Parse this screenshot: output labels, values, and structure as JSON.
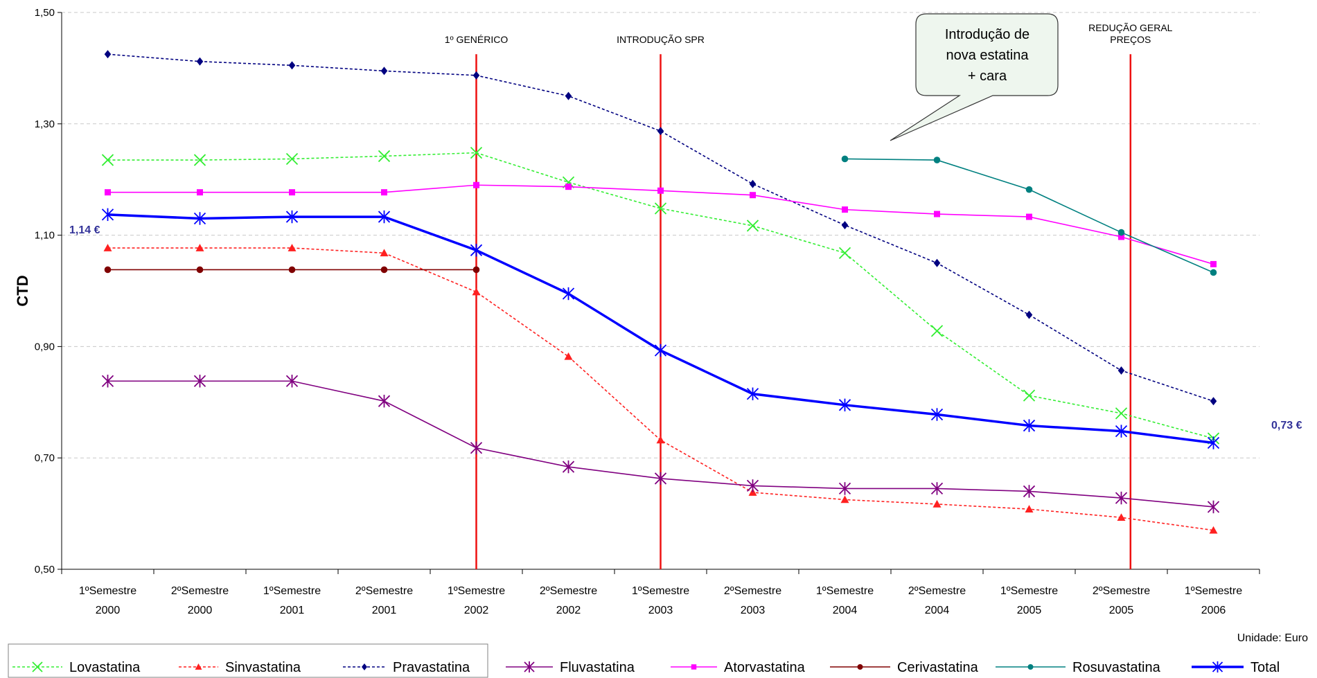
{
  "chart_data": {
    "type": "line",
    "ylabel": "CTD",
    "ylim": [
      0.5,
      1.5
    ],
    "yticks": [
      "1,50",
      "1,30",
      "1,10",
      "0,90",
      "0,70",
      "0,50"
    ],
    "categories": [
      [
        "1ºSemestre",
        "2000"
      ],
      [
        "2ºSemestre",
        "2000"
      ],
      [
        "1ºSemestre",
        "2001"
      ],
      [
        "2ºSemestre",
        "2001"
      ],
      [
        "1ºSemestre",
        "2002"
      ],
      [
        "2ºSemestre",
        "2002"
      ],
      [
        "1ºSemestre",
        "2003"
      ],
      [
        "2ºSemestre",
        "2003"
      ],
      [
        "1ºSemestre",
        "2004"
      ],
      [
        "2ºSemestre",
        "2004"
      ],
      [
        "1ºSemestre",
        "2005"
      ],
      [
        "2ºSemestre",
        "2005"
      ],
      [
        "1ºSemestre",
        "2006"
      ]
    ],
    "unit_note": "Unidade: Euro",
    "series": [
      {
        "name": "Lovastatina",
        "color": "#33ee33",
        "dash": true,
        "marker": "x",
        "values": [
          1.235,
          1.235,
          1.237,
          1.242,
          1.248,
          1.195,
          1.148,
          1.117,
          1.068,
          0.928,
          0.812,
          0.78,
          0.735
        ]
      },
      {
        "name": "Sinvastatina",
        "color": "#ff2020",
        "dash": true,
        "marker": "triangle",
        "values": [
          1.077,
          1.077,
          1.077,
          1.068,
          0.998,
          0.882,
          0.732,
          0.638,
          0.625,
          0.617,
          0.608,
          0.593,
          0.57
        ]
      },
      {
        "name": "Pravastatina",
        "color": "#000080",
        "dash": true,
        "marker": "diamond",
        "values": [
          1.425,
          1.412,
          1.405,
          1.395,
          1.387,
          1.35,
          1.287,
          1.192,
          1.118,
          1.05,
          0.957,
          0.857,
          0.802
        ]
      },
      {
        "name": "Fluvastatina",
        "color": "#800080",
        "dash": false,
        "marker": "star",
        "values": [
          0.838,
          0.838,
          0.838,
          0.802,
          0.718,
          0.684,
          0.663,
          0.65,
          0.645,
          0.645,
          0.64,
          0.628,
          0.612
        ]
      },
      {
        "name": "Atorvastatina",
        "color": "#ff00ff",
        "dash": false,
        "marker": "square",
        "values": [
          1.177,
          1.177,
          1.177,
          1.177,
          1.19,
          1.187,
          1.18,
          1.172,
          1.146,
          1.138,
          1.133,
          1.097,
          1.048
        ]
      },
      {
        "name": "Cerivastatina",
        "color": "#800000",
        "dash": false,
        "marker": "circle",
        "values": [
          1.038,
          1.038,
          1.038,
          1.038,
          1.038,
          null,
          null,
          null,
          null,
          null,
          null,
          null,
          null
        ]
      },
      {
        "name": "Rosuvastatina",
        "color": "#008080",
        "dash": false,
        "marker": "circle",
        "values": [
          null,
          null,
          null,
          null,
          null,
          null,
          null,
          null,
          1.237,
          1.235,
          1.182,
          1.105,
          1.033
        ]
      },
      {
        "name": "Total",
        "color": "#0000ff",
        "dash": false,
        "marker": "star",
        "bold": true,
        "values": [
          1.137,
          1.13,
          1.133,
          1.133,
          1.073,
          0.995,
          0.893,
          0.815,
          0.795,
          0.778,
          0.758,
          0.748,
          0.727
        ]
      }
    ],
    "events": [
      {
        "label_lines": [
          "1º GENÉRICO"
        ],
        "category_index": 4
      },
      {
        "label_lines": [
          "INTRODUÇÃO SPR"
        ],
        "category_index": 6
      },
      {
        "label_lines": [
          "REDUÇÃO GERAL",
          "PREÇOS"
        ],
        "category_index": 11.1
      }
    ],
    "annotations": {
      "start_value": "1,14 €",
      "end_value": "0,73 €",
      "callout_lines": [
        "Introdução de",
        "nova estatina",
        "+ cara"
      ]
    },
    "legend_placement": "bottom"
  }
}
